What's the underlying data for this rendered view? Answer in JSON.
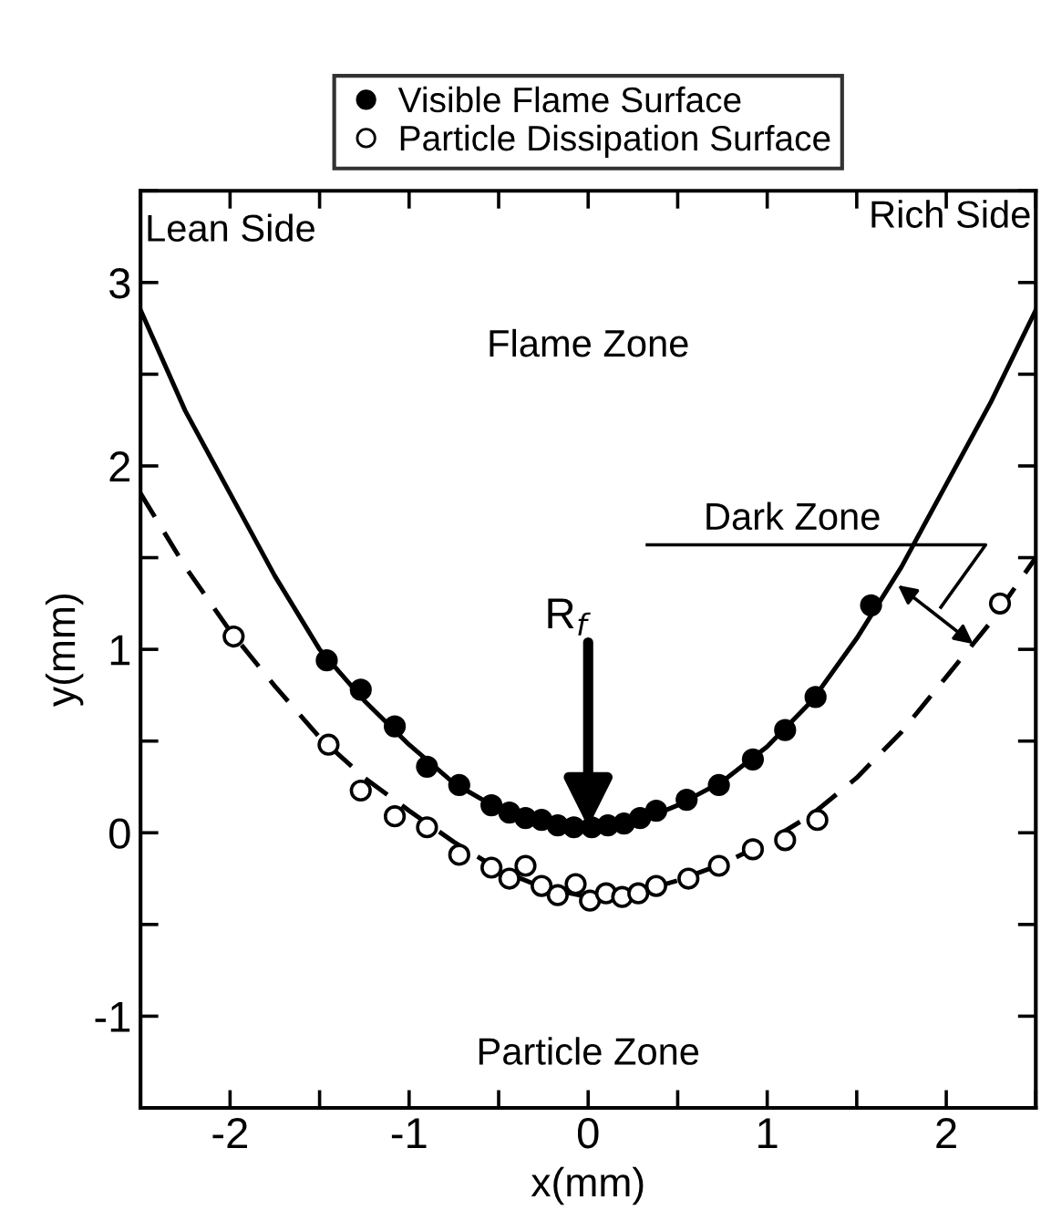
{
  "chart_data": {
    "type": "scatter",
    "xlabel": "x(mm)",
    "ylabel": "y(mm)",
    "xlim": [
      -2.5,
      2.5
    ],
    "ylim": [
      -1.5,
      3.5
    ],
    "xticks": [
      {
        "value": -2.5,
        "label": null
      },
      -2,
      {
        "value": -1.5,
        "label": null
      },
      -1,
      {
        "value": -0.5,
        "label": null
      },
      0,
      {
        "value": 0.5,
        "label": null
      },
      1,
      {
        "value": 1.5,
        "label": null
      },
      2,
      {
        "value": 2.5,
        "label": null
      }
    ],
    "yticks": [
      {
        "value": -1.5,
        "label": null
      },
      -1,
      {
        "value": -0.5,
        "label": null
      },
      0,
      {
        "value": 0.5,
        "label": null
      },
      1,
      {
        "value": 1.5,
        "label": null
      },
      2,
      {
        "value": 2.5,
        "label": null
      },
      3,
      {
        "value": 3.5,
        "label": null
      }
    ],
    "grid": false,
    "legend": "top",
    "annotations": [
      "Lean Side",
      "Rich Side",
      "Flame Zone",
      "Particle Zone",
      "Dark Zone",
      {
        "text": "R$_{f}$",
        "x": 0,
        "y": 0.03
      }
    ],
    "series": [
      {
        "name": "Visible Flame Surface",
        "color": "#000000",
        "marker": "circle",
        "x": [
          -1.46,
          -1.27,
          -1.08,
          -0.9,
          -0.72,
          -0.54,
          -0.44,
          -0.35,
          -0.26,
          -0.17,
          -0.08,
          0.02,
          0.11,
          0.2,
          0.29,
          0.38,
          0.55,
          0.73,
          0.92,
          1.1,
          1.27,
          1.58
        ],
        "values": [
          0.94,
          0.78,
          0.58,
          0.36,
          0.26,
          0.15,
          0.11,
          0.08,
          0.07,
          0.04,
          0.03,
          0.03,
          0.04,
          0.05,
          0.08,
          0.12,
          0.18,
          0.26,
          0.4,
          0.56,
          0.74,
          1.24
        ]
      },
      {
        "name": "Particle Dissipation Surface",
        "color": "#000000",
        "marker": "open circle",
        "x": [
          -1.98,
          -1.45,
          -1.27,
          -1.08,
          -0.9,
          -0.72,
          -0.54,
          -0.44,
          -0.35,
          -0.26,
          -0.17,
          -0.07,
          0.01,
          0.1,
          0.19,
          0.28,
          0.38,
          0.56,
          0.73,
          0.92,
          1.1,
          1.28,
          2.3
        ],
        "values": [
          1.07,
          0.48,
          0.23,
          0.09,
          0.03,
          -0.12,
          -0.19,
          -0.25,
          -0.18,
          -0.29,
          -0.34,
          -0.28,
          -0.37,
          -0.33,
          -0.35,
          -0.33,
          -0.29,
          -0.25,
          -0.18,
          -0.09,
          -0.04,
          0.07,
          1.25
        ]
      },
      {
        "type": "line",
        "color": "#000000",
        "line_style": "solid",
        "marker": "none",
        "x": [
          -2.5,
          -2.25,
          -2,
          -1.75,
          -1.5,
          -1.25,
          -1,
          -0.75,
          -0.5,
          -0.25,
          0,
          0.25,
          0.5,
          0.75,
          1,
          1.25,
          1.5,
          1.75,
          2,
          2.25,
          2.5
        ],
        "values": [
          2.85,
          2.3,
          1.85,
          1.4,
          1.0,
          0.72,
          0.48,
          0.27,
          0.13,
          0.05,
          0.02,
          0.05,
          0.15,
          0.28,
          0.47,
          0.72,
          1.06,
          1.45,
          1.9,
          2.35,
          2.85
        ]
      },
      {
        "type": "line",
        "color": "#000000",
        "line_style": "dashed",
        "marker": "none",
        "x": [
          -2.5,
          -2.25,
          -2,
          -1.75,
          -1.5,
          -1.25,
          -1,
          -0.75,
          -0.5,
          -0.25,
          0,
          0.25,
          0.5,
          0.75,
          1,
          1.25,
          1.5,
          1.75,
          2,
          2.25,
          2.5
        ],
        "values": [
          1.85,
          1.45,
          1.1,
          0.8,
          0.52,
          0.3,
          0.12,
          -0.05,
          -0.2,
          -0.3,
          -0.35,
          -0.33,
          -0.26,
          -0.17,
          -0.05,
          0.1,
          0.3,
          0.55,
          0.85,
          1.15,
          1.5
        ]
      }
    ]
  }
}
